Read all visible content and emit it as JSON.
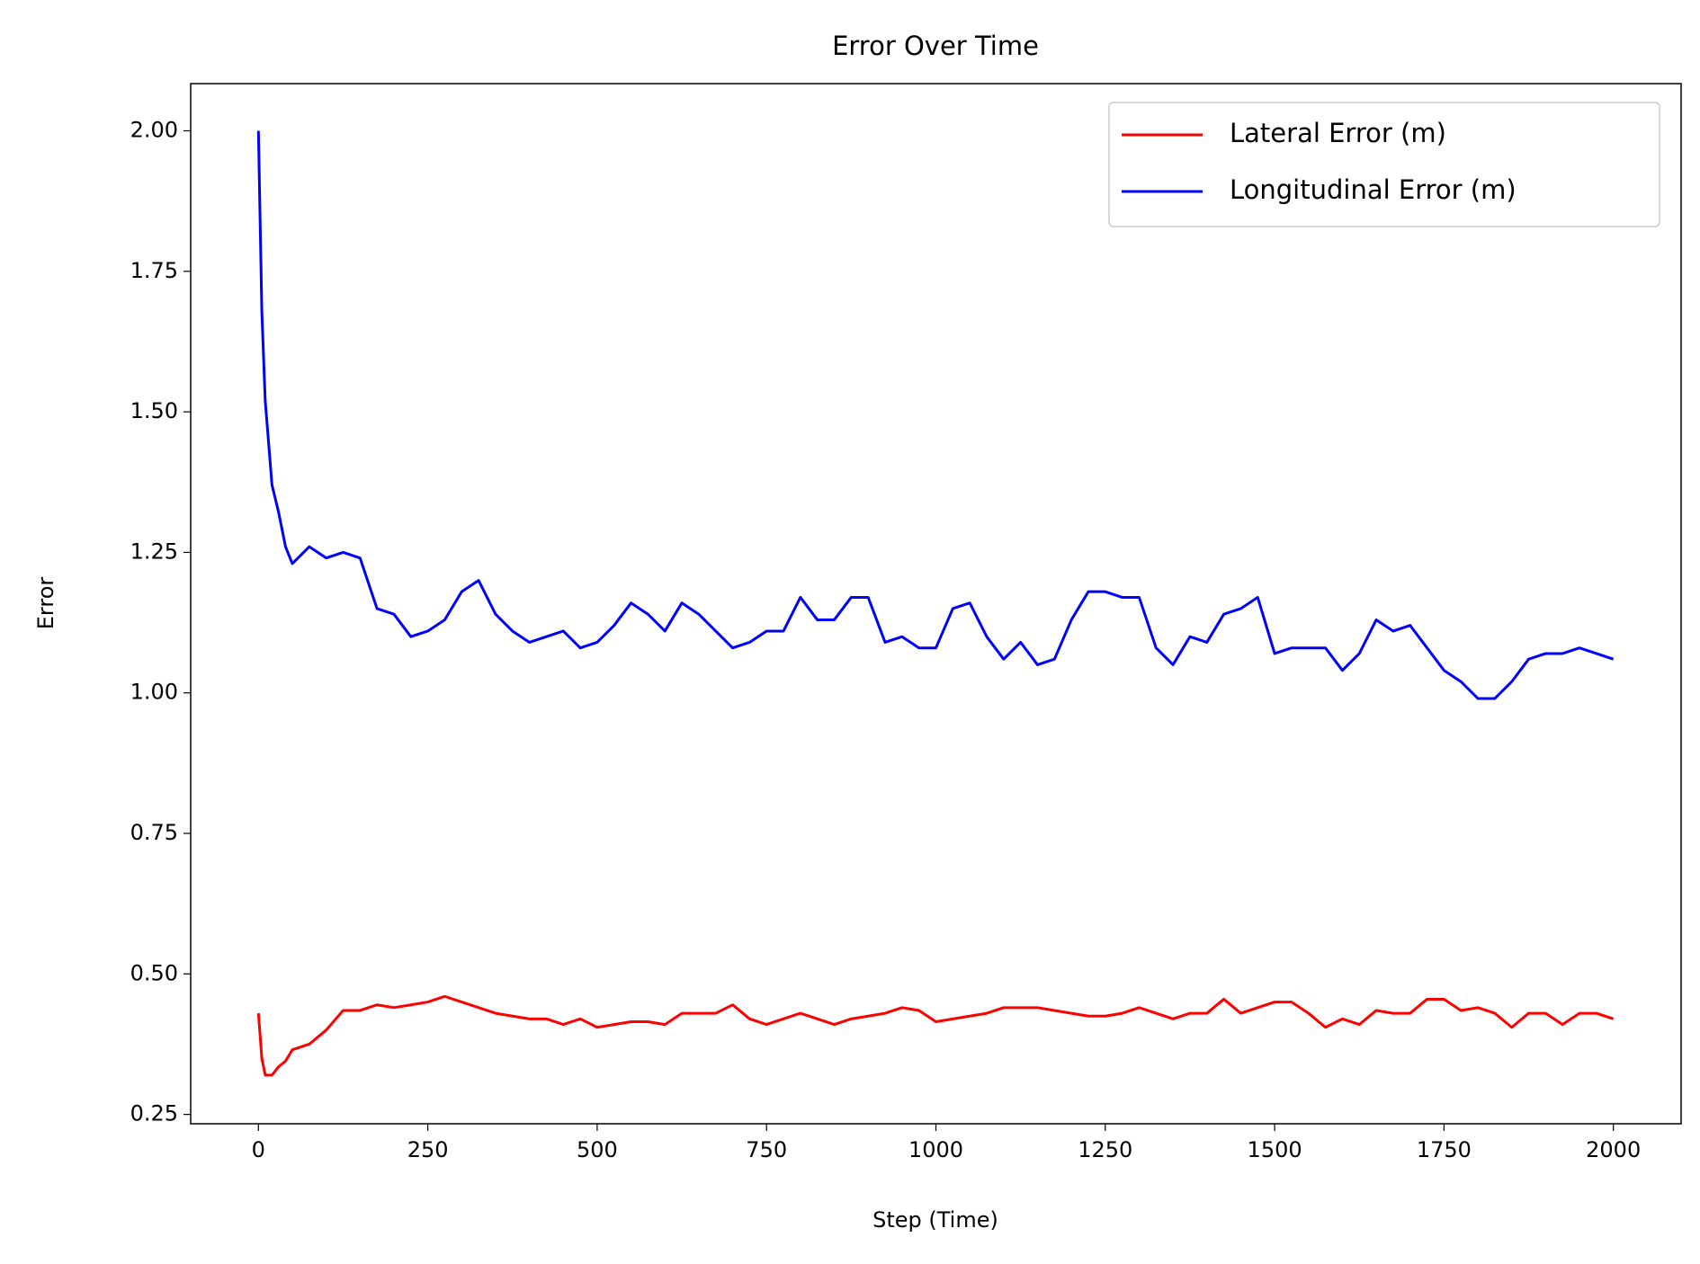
{
  "chart_data": {
    "type": "line",
    "title": "Error Over Time",
    "x_label": "Step (Time)",
    "y_label": "Error",
    "x": [
      0,
      5,
      10,
      20,
      30,
      40,
      50,
      75,
      100,
      125,
      150,
      175,
      200,
      225,
      250,
      275,
      300,
      325,
      350,
      375,
      400,
      425,
      450,
      475,
      500,
      525,
      550,
      575,
      600,
      625,
      650,
      675,
      700,
      725,
      750,
      775,
      800,
      825,
      850,
      875,
      900,
      925,
      950,
      975,
      1000,
      1025,
      1050,
      1075,
      1100,
      1125,
      1150,
      1175,
      1200,
      1225,
      1250,
      1275,
      1300,
      1325,
      1350,
      1375,
      1400,
      1425,
      1450,
      1475,
      1500,
      1525,
      1550,
      1575,
      1600,
      1625,
      1650,
      1675,
      1700,
      1725,
      1750,
      1775,
      1800,
      1825,
      1850,
      1875,
      1900,
      1925,
      1950,
      1975,
      2000
    ],
    "series": [
      {
        "name": "Lateral Error (m)",
        "color": "#ff0000",
        "values": [
          0.43,
          0.35,
          0.32,
          0.32,
          0.335,
          0.345,
          0.365,
          0.375,
          0.4,
          0.435,
          0.435,
          0.445,
          0.44,
          0.445,
          0.45,
          0.46,
          0.45,
          0.44,
          0.43,
          0.425,
          0.42,
          0.42,
          0.41,
          0.42,
          0.405,
          0.41,
          0.415,
          0.415,
          0.41,
          0.43,
          0.43,
          0.43,
          0.445,
          0.42,
          0.41,
          0.42,
          0.43,
          0.42,
          0.41,
          0.42,
          0.425,
          0.43,
          0.44,
          0.435,
          0.415,
          0.42,
          0.425,
          0.43,
          0.44,
          0.44,
          0.44,
          0.435,
          0.43,
          0.425,
          0.425,
          0.43,
          0.44,
          0.43,
          0.42,
          0.43,
          0.43,
          0.455,
          0.43,
          0.44,
          0.45,
          0.45,
          0.43,
          0.405,
          0.42,
          0.41,
          0.435,
          0.43,
          0.43,
          0.455,
          0.455,
          0.435,
          0.44,
          0.43,
          0.405,
          0.43,
          0.43,
          0.41,
          0.43,
          0.43,
          0.42
        ]
      },
      {
        "name": "Longitudinal Error (m)",
        "color": "#0000ff",
        "values": [
          2.0,
          1.68,
          1.52,
          1.37,
          1.32,
          1.26,
          1.23,
          1.26,
          1.24,
          1.25,
          1.24,
          1.15,
          1.14,
          1.1,
          1.11,
          1.13,
          1.18,
          1.2,
          1.14,
          1.11,
          1.09,
          1.1,
          1.11,
          1.08,
          1.09,
          1.12,
          1.16,
          1.14,
          1.11,
          1.16,
          1.14,
          1.11,
          1.08,
          1.09,
          1.11,
          1.11,
          1.17,
          1.13,
          1.13,
          1.17,
          1.17,
          1.09,
          1.1,
          1.08,
          1.08,
          1.15,
          1.16,
          1.1,
          1.06,
          1.09,
          1.05,
          1.06,
          1.13,
          1.18,
          1.18,
          1.17,
          1.17,
          1.08,
          1.05,
          1.1,
          1.09,
          1.14,
          1.15,
          1.17,
          1.07,
          1.08,
          1.08,
          1.08,
          1.04,
          1.07,
          1.13,
          1.11,
          1.12,
          1.08,
          1.04,
          1.02,
          0.99,
          0.99,
          1.02,
          1.06,
          1.07,
          1.07,
          1.08,
          1.07,
          1.06
        ]
      }
    ],
    "xlim": [
      -100,
      2100
    ],
    "ylim": [
      0.2334,
      2.084
    ],
    "xticks": [
      0,
      250,
      500,
      750,
      1000,
      1250,
      1500,
      1750,
      2000
    ],
    "yticks": [
      0.25,
      {
        "value": 0.5,
        "label": "0.50"
      },
      0.75,
      {
        "value": 1,
        "label": "1.00"
      },
      1.25,
      {
        "value": 1.5,
        "label": "1.50"
      },
      1.75,
      {
        "value": 2,
        "label": "2.00"
      }
    ],
    "legend": "upper right",
    "grid": false
  }
}
